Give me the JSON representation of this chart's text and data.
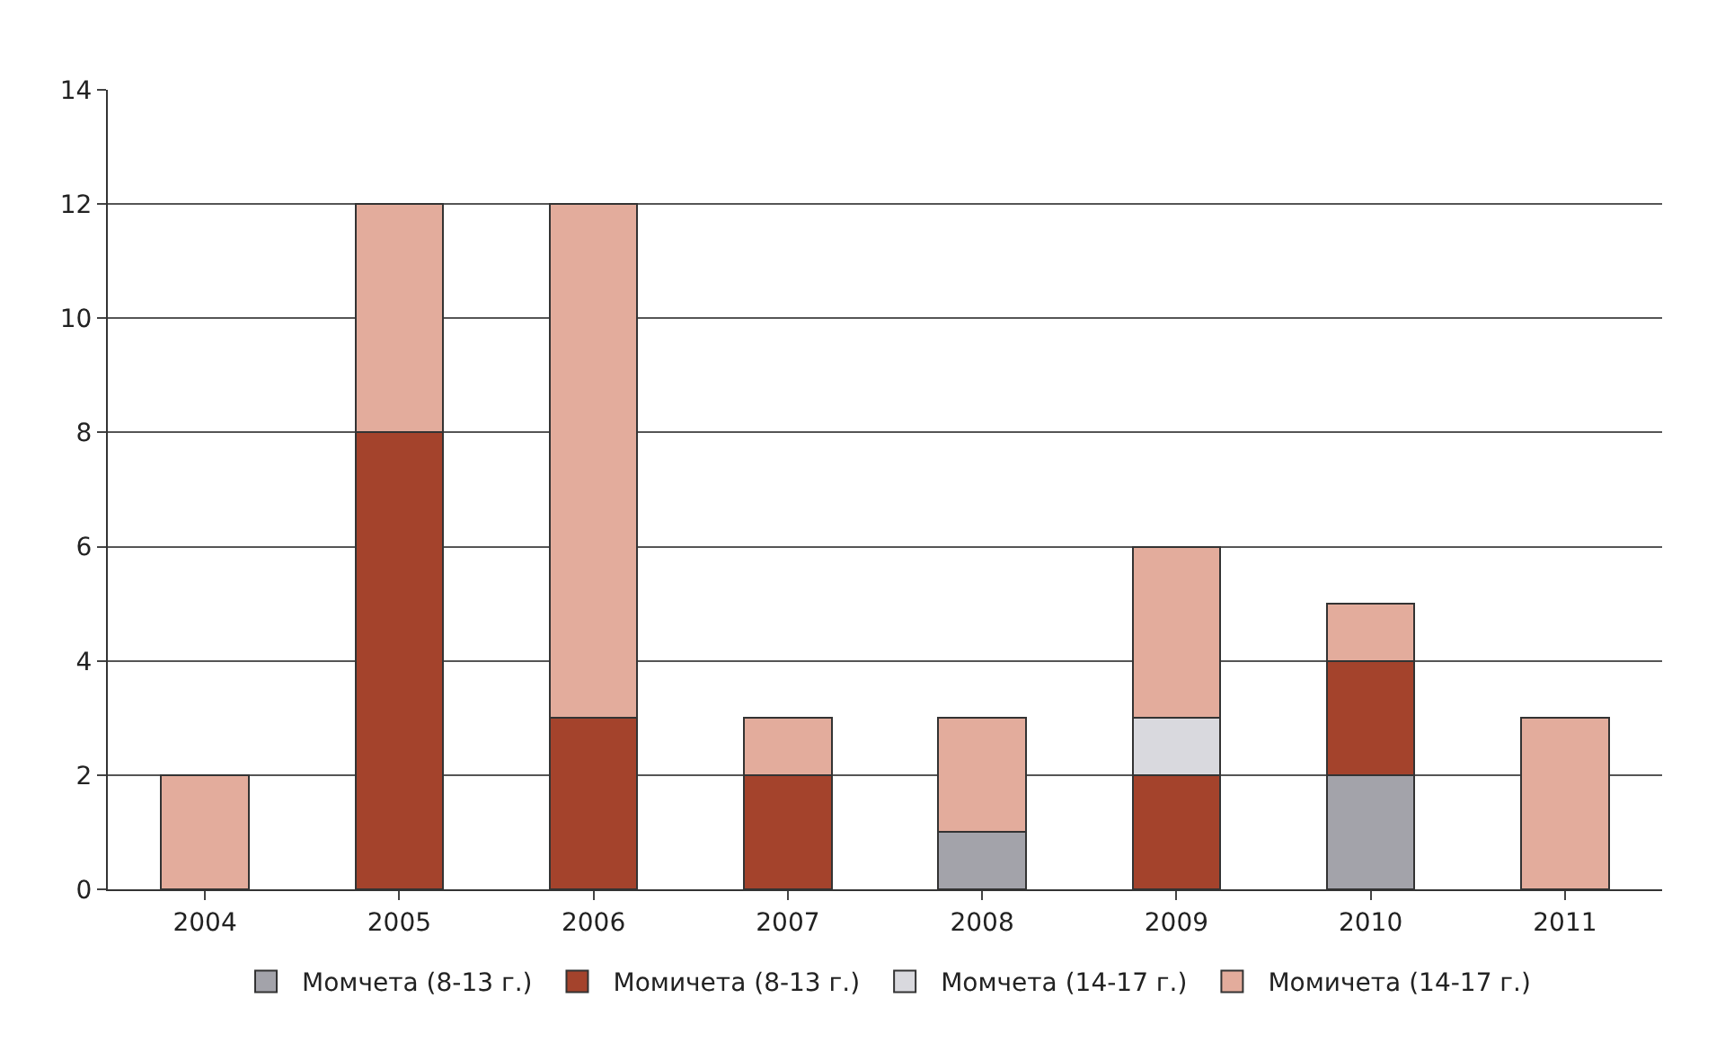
{
  "chart_data": {
    "type": "bar",
    "stacked": true,
    "categories": [
      "2004",
      "2005",
      "2006",
      "2007",
      "2008",
      "2009",
      "2010",
      "2011"
    ],
    "series": [
      {
        "name": "Момчета (8-13 г.)",
        "color": "#a3a3aa",
        "values": [
          null,
          null,
          null,
          null,
          1,
          null,
          2,
          null
        ]
      },
      {
        "name": "Момичета (8-13 г.)",
        "color": "#a4432c",
        "values": [
          null,
          8,
          3,
          2,
          null,
          2,
          2,
          null
        ]
      },
      {
        "name": "Момчета (14-17 г.)",
        "color": "#d9d9de",
        "values": [
          null,
          null,
          null,
          null,
          null,
          1,
          null,
          null
        ]
      },
      {
        "name": "Момичета (14-17 г.)",
        "color": "#e3ac9c",
        "values": [
          2,
          4,
          9,
          1,
          2,
          3,
          1,
          3
        ]
      }
    ],
    "ylim": [
      0,
      14
    ],
    "yticks": [
      0,
      2,
      4,
      6,
      8,
      10,
      12,
      14
    ],
    "grid": "y",
    "legend": "bottom"
  }
}
